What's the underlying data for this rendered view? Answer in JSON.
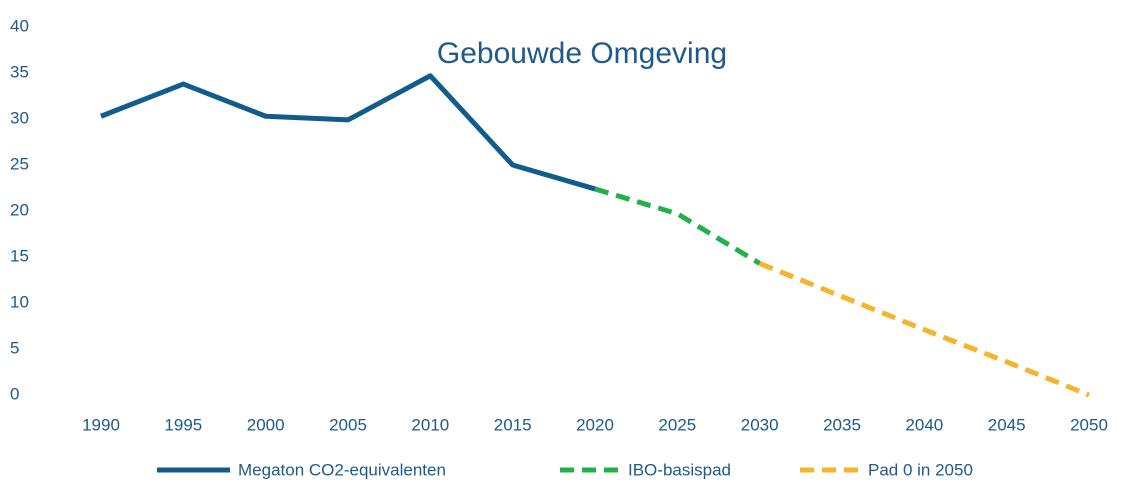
{
  "chart_data": {
    "type": "line",
    "title": "Gebouwde Omgeving",
    "categories": [
      "1990",
      "1995",
      "2000",
      "2005",
      "2010",
      "2015",
      "2020",
      "2025",
      "2030",
      "2035",
      "2040",
      "2045",
      "2050"
    ],
    "series": [
      {
        "name": "Megaton CO2-equivalenten",
        "color": "#125c8c",
        "dashed": false,
        "values": [
          30.3,
          33.8,
          30.3,
          29.9,
          34.7,
          25.0,
          22.4,
          null,
          null,
          null,
          null,
          null,
          null
        ]
      },
      {
        "name": "IBO-basispad",
        "color": "#22b04a",
        "dashed": true,
        "values": [
          null,
          null,
          null,
          null,
          null,
          null,
          22.4,
          19.7,
          14.3,
          null,
          null,
          null,
          null
        ]
      },
      {
        "name": "Pad 0 in 2050",
        "color": "#f6b32b",
        "dashed": true,
        "values": [
          null,
          null,
          null,
          null,
          null,
          null,
          null,
          null,
          14.3,
          10.7,
          7.1,
          3.6,
          0
        ]
      }
    ],
    "ylim": [
      0,
      40
    ],
    "yticks": [
      0,
      5,
      10,
      15,
      20,
      25,
      30,
      35,
      40
    ],
    "grid": false,
    "legend": "bottom"
  }
}
